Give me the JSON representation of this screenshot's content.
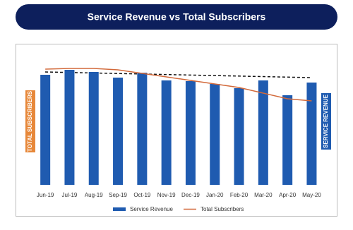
{
  "chart_data": {
    "type": "bar",
    "title": "Service Revenue vs Total Subscribers",
    "y_label": "TOTAL SUBSCRIBERS",
    "y2_label": "SERVICE REVENUE",
    "categories": [
      "Jun-19",
      "Jul-19",
      "Aug-19",
      "Sep-19",
      "Oct-19",
      "Nov-19",
      "Dec-19",
      "Jan-20",
      "Feb-20",
      "Mar-20",
      "Apr-20",
      "May-20"
    ],
    "series": [
      {
        "name": "Service Revenue",
        "type": "bar",
        "color": "#1f5bb0",
        "values": [
          156,
          163,
          160,
          152,
          159,
          148,
          147,
          143,
          137,
          148,
          127,
          145
        ]
      },
      {
        "name": "Total Subscribers",
        "type": "line",
        "color": "#d2693a",
        "values": [
          164,
          165,
          165,
          163,
          158,
          153,
          148,
          143,
          138,
          130,
          122,
          119
        ]
      }
    ]
  }
}
